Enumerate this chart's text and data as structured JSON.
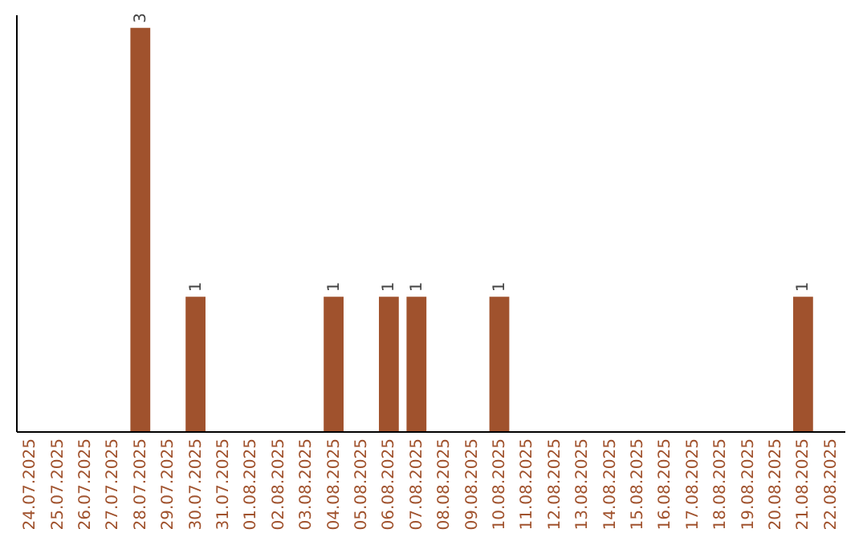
{
  "chart_data": {
    "type": "bar",
    "categories": [
      "24.07.2025",
      "25.07.2025",
      "26.07.2025",
      "27.07.2025",
      "28.07.2025",
      "29.07.2025",
      "30.07.2025",
      "31.07.2025",
      "01.08.2025",
      "02.08.2025",
      "03.08.2025",
      "04.08.2025",
      "05.08.2025",
      "06.08.2025",
      "07.08.2025",
      "08.08.2025",
      "09.08.2025",
      "10.08.2025",
      "11.08.2025",
      "12.08.2025",
      "13.08.2025",
      "14.08.2025",
      "15.08.2025",
      "16.08.2025",
      "17.08.2025",
      "18.08.2025",
      "19.08.2025",
      "20.08.2025",
      "21.08.2025",
      "22.08.2025"
    ],
    "values": [
      0,
      0,
      0,
      0,
      3,
      0,
      1,
      0,
      0,
      0,
      0,
      1,
      0,
      1,
      1,
      0,
      0,
      1,
      0,
      0,
      0,
      0,
      0,
      0,
      0,
      0,
      0,
      0,
      1,
      0
    ],
    "value_labels": [
      null,
      null,
      null,
      null,
      "3",
      null,
      "1",
      null,
      null,
      null,
      null,
      "1",
      null,
      "1",
      "1",
      null,
      null,
      "1",
      null,
      null,
      null,
      null,
      null,
      null,
      null,
      null,
      null,
      null,
      "1",
      null
    ],
    "color": "#a0522d",
    "ylim": [
      0,
      3.1
    ],
    "tick_labels": "x"
  }
}
